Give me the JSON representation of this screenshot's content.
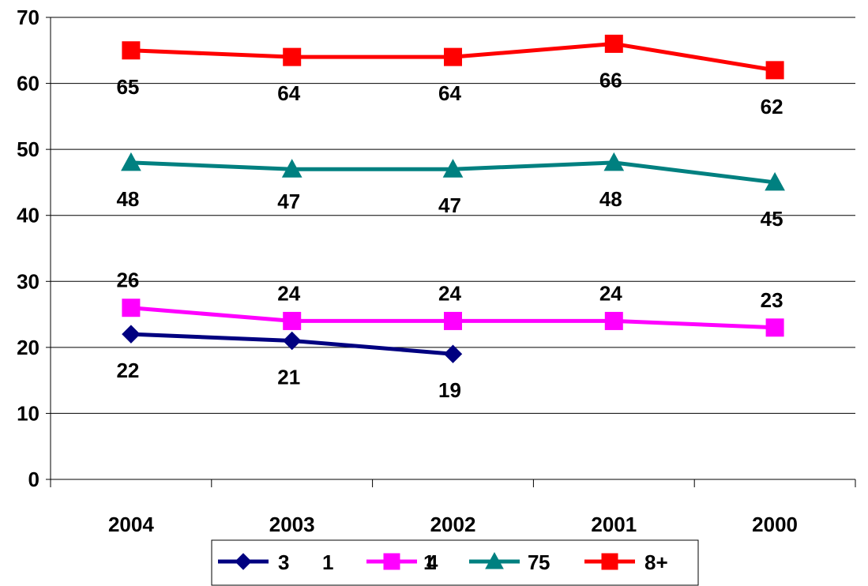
{
  "chart_data": {
    "type": "line",
    "categories": [
      "2004",
      "2003",
      "2002",
      "2001",
      "2000"
    ],
    "ylim": [
      0,
      70
    ],
    "yticks": [
      0,
      10,
      20,
      30,
      40,
      50,
      60,
      70
    ],
    "grid": true,
    "legend_position": "bottom",
    "series": [
      {
        "name": "3",
        "values": [
          22,
          21,
          19,
          null,
          null
        ],
        "color": "#000080",
        "marker": "diamond"
      },
      {
        "name": "1 4",
        "values": [
          26,
          24,
          24,
          24,
          23
        ],
        "color": "#FF00FF",
        "marker": "square"
      },
      {
        "name": "1 7",
        "values": [
          48,
          47,
          47,
          48,
          45
        ],
        "color": "#008080",
        "marker": "triangle"
      },
      {
        "name": "5 8+",
        "values": [
          65,
          64,
          64,
          66,
          62
        ],
        "color": "#FF0000",
        "marker": "square"
      }
    ],
    "legend": {
      "entries": [
        {
          "label": "3",
          "color": "#000080",
          "marker": "diamond"
        },
        {
          "label": "1",
          "color": "#FF00FF",
          "marker": "square",
          "suffix": "4"
        },
        {
          "label": "1",
          "color": "#008080",
          "marker": "triangle",
          "suffix": "7"
        },
        {
          "label": "5",
          "color": "#FF0000",
          "marker": "square",
          "suffix": "8+"
        }
      ]
    }
  }
}
